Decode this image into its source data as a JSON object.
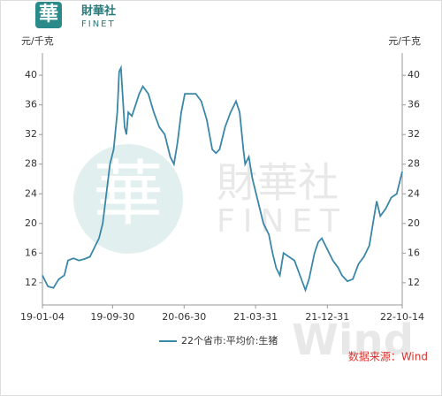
{
  "header": {
    "logo_char": "華",
    "brand": "財華社",
    "brand_en": "FINET"
  },
  "watermark": "Wind",
  "chart_data": {
    "type": "line",
    "y_unit": "元/千克",
    "y2_unit": "元/千克",
    "source": "数据来源：Wind",
    "x": [
      "19-01-04",
      "19-01-25",
      "19-02-15",
      "19-03-08",
      "19-03-29",
      "19-04-12",
      "19-05-03",
      "19-05-24",
      "19-06-14",
      "19-07-05",
      "19-07-26",
      "19-08-09",
      "19-08-23",
      "19-09-06",
      "19-09-20",
      "19-10-04",
      "19-10-18",
      "19-10-25",
      "19-11-01",
      "19-11-08",
      "19-11-15",
      "19-11-22",
      "19-11-29",
      "19-12-13",
      "19-12-27",
      "20-01-10",
      "20-01-24",
      "20-02-14",
      "20-03-06",
      "20-03-27",
      "20-04-17",
      "20-05-08",
      "20-05-22",
      "20-06-05",
      "20-06-19",
      "20-07-03",
      "20-07-24",
      "20-08-14",
      "20-09-04",
      "20-09-25",
      "20-10-16",
      "20-10-30",
      "20-11-13",
      "20-12-04",
      "20-12-25",
      "21-01-15",
      "21-01-29",
      "21-02-12",
      "21-02-19",
      "21-03-05",
      "21-03-19",
      "21-04-09",
      "21-04-30",
      "21-05-21",
      "21-06-04",
      "21-06-18",
      "21-07-02",
      "21-07-16",
      "21-08-06",
      "21-08-27",
      "21-09-17",
      "21-10-08",
      "21-10-22",
      "21-11-12",
      "21-11-26",
      "21-12-10",
      "21-12-31",
      "22-01-21",
      "22-02-11",
      "22-02-25",
      "22-03-18",
      "22-04-08",
      "22-04-29",
      "22-05-20",
      "22-06-10",
      "22-06-24",
      "22-07-08",
      "22-07-22",
      "22-08-12",
      "22-09-02",
      "22-09-23",
      "22-10-14"
    ],
    "series": [
      {
        "name": "22个省市:平均价:生猪",
        "color": "#3a87a8",
        "values": [
          13,
          11.5,
          11.3,
          12.5,
          13,
          15,
          15.3,
          15,
          15.2,
          15.5,
          17,
          18,
          20,
          24,
          28,
          30,
          35,
          40.5,
          41,
          37,
          33,
          32,
          35,
          34.5,
          36,
          37.5,
          38.5,
          37.5,
          35,
          33,
          32,
          29,
          28,
          31,
          35,
          37.5,
          37.5,
          37.5,
          36.5,
          34,
          30,
          29.5,
          30,
          33,
          35,
          36.5,
          35,
          30,
          28,
          29,
          26,
          23,
          20,
          18.5,
          16,
          14,
          13,
          16,
          15.5,
          15,
          13,
          11,
          12.5,
          16,
          17.5,
          18,
          16.5,
          15,
          14,
          13,
          12.2,
          12.5,
          14.5,
          15.5,
          17,
          20,
          23,
          21,
          22,
          23.5,
          24,
          27
        ]
      }
    ],
    "xlim": [
      "19-01-04",
      "22-10-14"
    ],
    "xticks": [
      "19-01-04",
      "19-09-30",
      "20-06-30",
      "21-03-31",
      "21-12-31",
      "22-10-14"
    ],
    "ylim": [
      9,
      43
    ],
    "yticks": [
      12,
      16,
      20,
      24,
      28,
      32,
      36,
      40
    ],
    "grid": false
  }
}
